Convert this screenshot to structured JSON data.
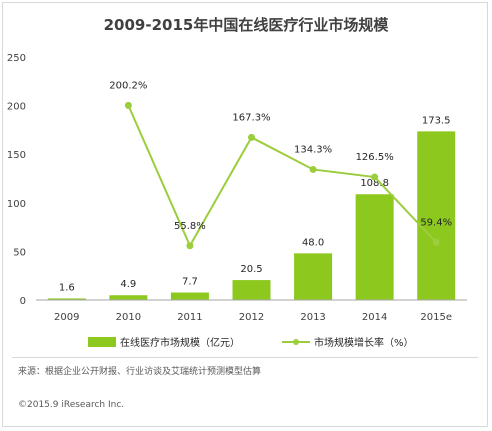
{
  "chart_data": {
    "title": "2009-2015年中国在线医疗行业市场规模",
    "categories": [
      "2009",
      "2010",
      "2011",
      "2012",
      "2013",
      "2014",
      "2015e"
    ],
    "ylim": [
      0,
      250
    ],
    "yticks": [
      "0",
      "50",
      "100",
      "150",
      "200",
      "250"
    ],
    "grid": false,
    "legend_position": "bottom",
    "series": [
      {
        "name": "在线医疗市场规模（亿元）",
        "type": "bar",
        "color": "#8dc81e",
        "values": [
          1.6,
          4.9,
          7.7,
          20.5,
          48.0,
          108.8,
          173.5
        ],
        "labels": [
          "1.6",
          "4.9",
          "7.7",
          "20.5",
          "48.0",
          "108.8",
          "173.5"
        ]
      },
      {
        "name": "市场规模增长率（%）",
        "type": "line",
        "color": "#9ccd3c",
        "values": [
          null,
          200.2,
          55.8,
          167.3,
          134.3,
          126.5,
          59.4
        ],
        "labels": [
          "",
          "200.2%",
          "55.8%",
          "167.3%",
          "134.3%",
          "126.5%",
          "59.4%"
        ]
      }
    ]
  },
  "footer": {
    "source": "来源：根据企业公开财报、行业访谈及艾瑞统计预测模型估算",
    "credit": "©2015.9 iResearch Inc."
  }
}
